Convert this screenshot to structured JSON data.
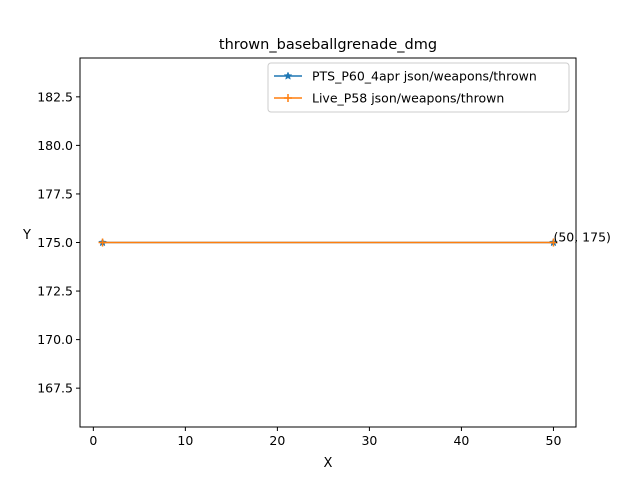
{
  "chart_data": {
    "type": "line",
    "title": "thrown_baseballgrenade_dmg",
    "xlabel": "X",
    "ylabel": "Y",
    "xlim": [
      -1.45,
      52.45
    ],
    "ylim": [
      165.5,
      184.5
    ],
    "xticks": [
      0,
      10,
      20,
      30,
      40,
      50
    ],
    "yticks": [
      167.5,
      170.0,
      172.5,
      175.0,
      177.5,
      180.0,
      182.5
    ],
    "xtick_labels": [
      "0",
      "10",
      "20",
      "30",
      "40",
      "50"
    ],
    "ytick_labels": [
      "167.5",
      "170.0",
      "172.5",
      "175.0",
      "177.5",
      "180.0",
      "182.5"
    ],
    "grid": false,
    "legend_position": "upper-right",
    "series": [
      {
        "name": "PTS_P60_4apr json/weapons/thrown",
        "color": "#1f77b4",
        "marker": "star",
        "x": [
          1,
          50
        ],
        "y": [
          175,
          175
        ]
      },
      {
        "name": "Live_P58 json/weapons/thrown",
        "color": "#ff7f0e",
        "marker": "plus",
        "x": [
          1,
          50
        ],
        "y": [
          175,
          175
        ]
      }
    ],
    "annotations": [
      {
        "text": "(50, 175)",
        "x": 50,
        "y": 175
      }
    ]
  }
}
